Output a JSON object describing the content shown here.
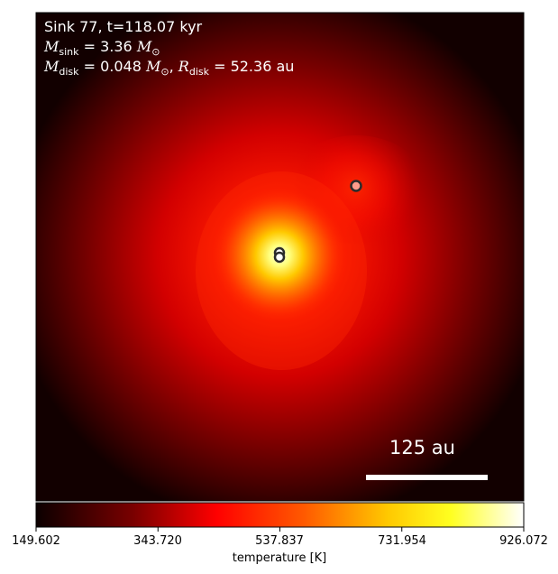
{
  "annotation": {
    "title": "Sink 77, t=118.07 kyr",
    "msink_value": "3.36",
    "mdisk_value": "0.048",
    "rdisk_value": "52.36",
    "mass_unit": "M⊙",
    "length_unit": "au"
  },
  "scalebar": {
    "label": "125 au"
  },
  "colorbar": {
    "label": "temperature [K]",
    "colormap": "hot",
    "ticks": [
      "149.602",
      "343.720",
      "537.837",
      "731.954",
      "926.072"
    ],
    "min": 149.602,
    "max": 926.072
  },
  "sinks": [
    {
      "name": "central-sink-a"
    },
    {
      "name": "central-sink-b"
    },
    {
      "name": "companion-sink"
    }
  ],
  "colors": {
    "background_edge": "#0d0000",
    "hot_core": "#ffff66",
    "sink_outline": "#2b2b2b",
    "sink_fill": "#ff9a8a",
    "text": "#ffffff"
  }
}
